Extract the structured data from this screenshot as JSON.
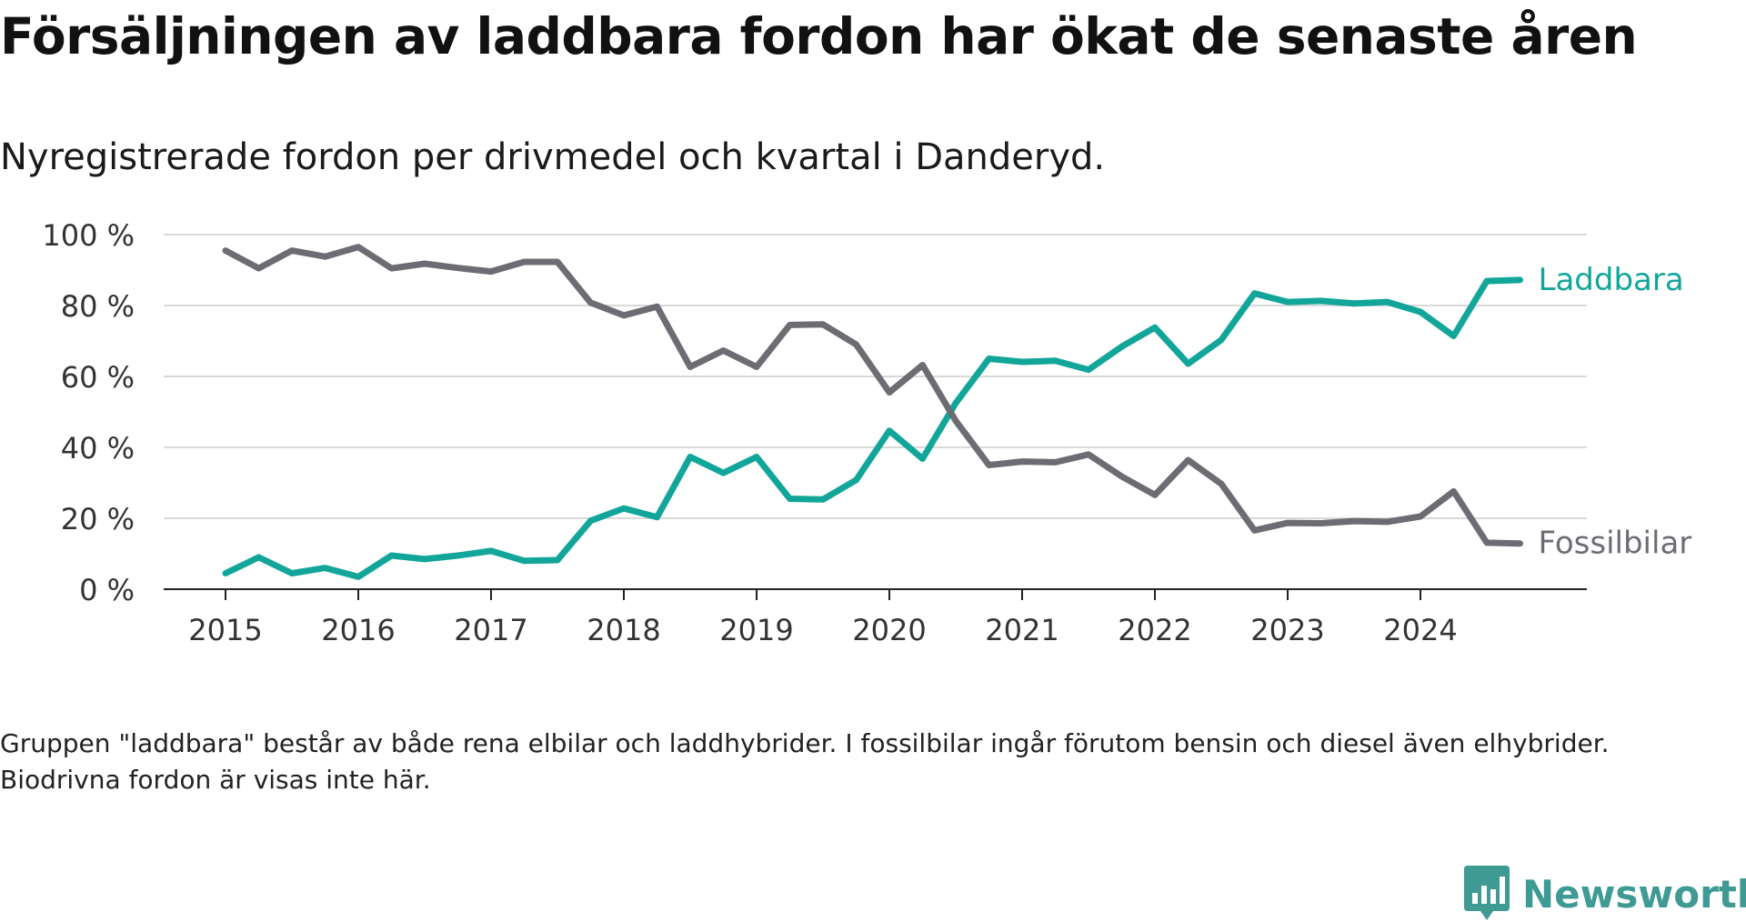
{
  "title": "Försäljningen av laddbara fordon har ökat de senaste åren",
  "subtitle": "Nyregistrerade fordon per drivmedel och kvartal i Danderyd.",
  "footnote": "Gruppen \"laddbara\" består av både rena elbilar och laddhybrider. I fossilbilar ingår förutom bensin och diesel även elhybrider. Biodrivna fordon är visas inte här.",
  "logo": {
    "text": "Newsworthy",
    "icon": "newsworthy-logo-icon",
    "color": "#3e9a93"
  },
  "chart_data": {
    "type": "line",
    "title": "Försäljningen av laddbara fordon har ökat de senaste åren",
    "subtitle": "Nyregistrerade fordon per drivmedel och kvartal i Danderyd.",
    "xlabel": "",
    "ylabel": "",
    "ylim": [
      0,
      100
    ],
    "yticks": [
      0,
      20,
      40,
      60,
      80,
      100
    ],
    "ytick_labels": [
      "0 %",
      "20 %",
      "40 %",
      "60 %",
      "80 %",
      "100 %"
    ],
    "xticks": [
      2015,
      2016,
      2017,
      2018,
      2019,
      2020,
      2021,
      2022,
      2023,
      2024
    ],
    "xtick_labels": [
      "2015",
      "2016",
      "2017",
      "2018",
      "2019",
      "2020",
      "2021",
      "2022",
      "2023",
      "2024"
    ],
    "grid": "horizontal",
    "x": [
      2015.0,
      2015.25,
      2015.5,
      2015.75,
      2016.0,
      2016.25,
      2016.5,
      2016.75,
      2017.0,
      2017.25,
      2017.5,
      2017.75,
      2018.0,
      2018.25,
      2018.5,
      2018.75,
      2019.0,
      2019.25,
      2019.5,
      2019.75,
      2020.0,
      2020.25,
      2020.5,
      2020.75,
      2021.0,
      2021.25,
      2021.5,
      2021.75,
      2022.0,
      2022.25,
      2022.5,
      2022.75,
      2023.0,
      2023.25,
      2023.5,
      2023.75,
      2024.0,
      2024.25,
      2024.5,
      2024.75
    ],
    "series": [
      {
        "name": "Laddbara",
        "label": "Laddbara",
        "color": "#12a69a",
        "values": [
          4.5,
          9.0,
          4.5,
          6.0,
          3.5,
          9.5,
          8.5,
          9.5,
          10.8,
          8.0,
          8.2,
          19.3,
          22.8,
          20.3,
          37.3,
          32.8,
          37.3,
          25.5,
          25.3,
          30.8,
          44.7,
          36.8,
          52.5,
          65.0,
          64.1,
          64.4,
          61.9,
          68.4,
          73.8,
          63.6,
          70.3,
          83.4,
          81.0,
          81.3,
          80.6,
          81.0,
          78.2,
          71.4,
          86.9,
          87.2
        ]
      },
      {
        "name": "Fossilbilar",
        "label": "Fossilbilar",
        "color": "#6c6c73",
        "values": [
          95.5,
          90.5,
          95.5,
          93.8,
          96.5,
          90.5,
          91.8,
          90.6,
          89.6,
          92.3,
          92.3,
          80.8,
          77.2,
          79.7,
          62.7,
          67.3,
          62.7,
          74.5,
          74.7,
          69.0,
          55.5,
          63.2,
          47.5,
          35.0,
          36.0,
          35.8,
          38.0,
          31.8,
          26.6,
          36.4,
          29.7,
          16.6,
          18.7,
          18.6,
          19.2,
          19.0,
          20.5,
          27.6,
          13.1,
          12.9
        ]
      }
    ]
  }
}
